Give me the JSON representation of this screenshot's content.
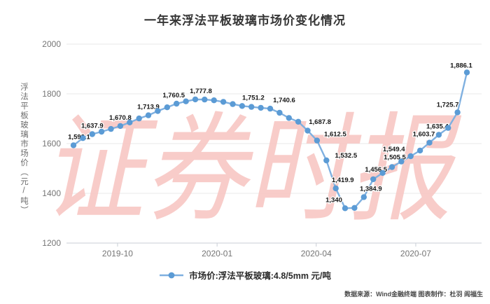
{
  "footer": {
    "credit": "数据来源：Wind金融终端 图表制作：杜羽 阎福生"
  },
  "watermark": "证券时报",
  "colors": {
    "line": "#7fb0e0",
    "marker": "#5b9bd5",
    "grid": "#e8e8e8",
    "axis": "#c9ced6",
    "tick_text": "#757575",
    "label_text": "#161616",
    "watermark": "#f7c7c3",
    "title_text": "#363636"
  },
  "chart_data": {
    "type": "line",
    "title": "一年来浮法平板玻璃市场价变化情况",
    "ylabel": "浮法平板玻璃市场价（元/吨）",
    "xlabel": "",
    "ylim": [
      1200,
      2000
    ],
    "y_ticks": [
      2000,
      1800,
      1600,
      1400,
      1200
    ],
    "x_ticks": [
      {
        "label": "2019-10",
        "f": 0.112
      },
      {
        "label": "2020-01",
        "f": 0.365
      },
      {
        "label": "2020-04",
        "f": 0.617
      },
      {
        "label": "2020-07",
        "f": 0.87
      }
    ],
    "grid": true,
    "legend_position": "bottom",
    "series": [
      {
        "name": "市场价:浮法平板玻璃:4.8/5mm 元/吨",
        "points": [
          {
            "v": 1593.1,
            "l": "1,593.1",
            "dx": 8
          },
          {
            "v": 1622
          },
          {
            "v": 1637.9,
            "l": "1,637.9"
          },
          {
            "v": 1648
          },
          {
            "v": 1659
          },
          {
            "v": 1670.8,
            "l": "1,670.8"
          },
          {
            "v": 1685
          },
          {
            "v": 1701
          },
          {
            "v": 1713.9,
            "l": "1,713.9"
          },
          {
            "v": 1731
          },
          {
            "v": 1746
          },
          {
            "v": 1760.5,
            "l": "1,760.5",
            "dx": -4
          },
          {
            "v": 1770
          },
          {
            "v": 1777.8,
            "l": "1,777.8",
            "dx": 8
          },
          {
            "v": 1777.3
          },
          {
            "v": 1774
          },
          {
            "v": 1768
          },
          {
            "v": 1759
          },
          {
            "v": 1751.2,
            "l": "1,751.2",
            "dx": 16
          },
          {
            "v": 1747.5
          },
          {
            "v": 1744
          },
          {
            "v": 1740.6,
            "l": "1,740.6",
            "dx": 20
          },
          {
            "v": 1724
          },
          {
            "v": 1703
          },
          {
            "v": 1687.8,
            "l": "1,687.8",
            "dx": 31,
            "dy": 3
          },
          {
            "v": 1652
          },
          {
            "v": 1612.5,
            "l": "1,612.5",
            "dx": 26,
            "dy": -6
          },
          {
            "v": 1532.5,
            "l": "1,532.5",
            "dx": 28,
            "dy": -4
          },
          {
            "v": 1419.9,
            "l": "1,419.9",
            "dx": 10
          },
          {
            "v": 1340,
            "l": "1,340",
            "dx": -16
          },
          {
            "v": 1341.5
          },
          {
            "v": 1384.9,
            "l": "1,384.9",
            "dx": 10
          },
          {
            "v": 1456.5,
            "l": "1,456.5",
            "dx": 4,
            "dy": -11
          },
          {
            "v": 1482
          },
          {
            "v": 1505.5,
            "l": "1,505.5",
            "dx": 4,
            "dy": -11
          },
          {
            "v": 1528
          },
          {
            "v": 1549.4,
            "l": "1,549.4",
            "dx": -24,
            "dy": -7
          },
          {
            "v": 1572
          },
          {
            "v": 1603.7,
            "l": "1,603.7",
            "dx": -8
          },
          {
            "v": 1635.4,
            "l": "1,635.4",
            "dx": -2
          },
          {
            "v": 1663
          },
          {
            "v": 1725.7,
            "l": "1,725.7",
            "dx": -14,
            "dy": -8
          },
          {
            "v": 1886.1,
            "l": "1,886.1",
            "dx": -8,
            "dy": -7
          }
        ]
      }
    ]
  }
}
